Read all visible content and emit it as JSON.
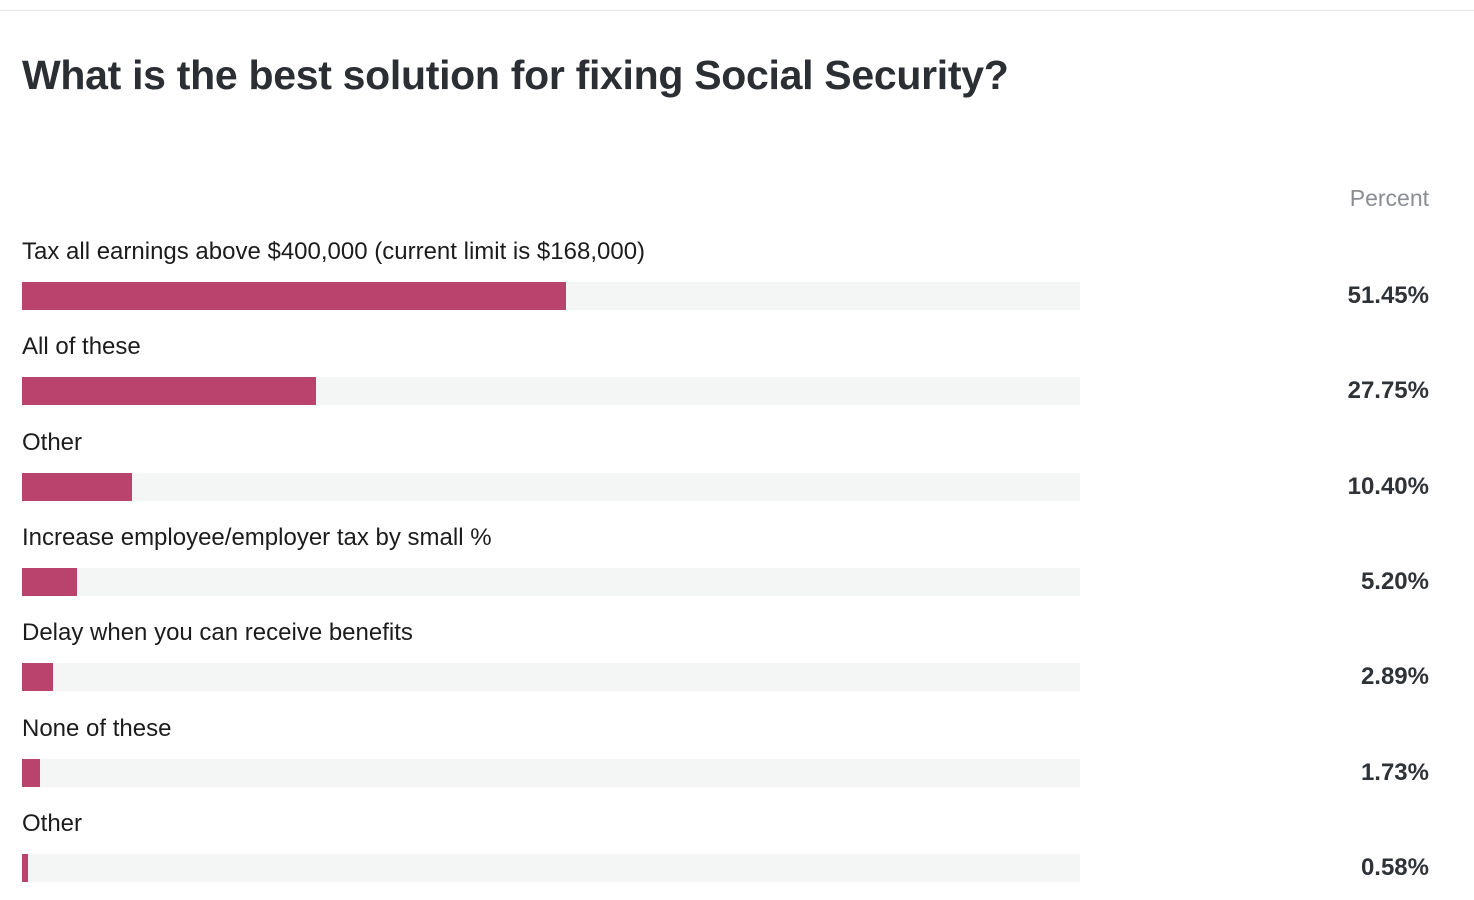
{
  "page": {
    "title": "What is the best solution for fixing Social Security?",
    "column_header": "Percent"
  },
  "colors": {
    "bar": "#b9436c",
    "track": "#f4f5f5",
    "title": "#2b2f33",
    "header": "#8a8d91"
  },
  "chart_data": {
    "type": "bar",
    "orientation": "horizontal",
    "title": "What is the best solution for fixing Social Security?",
    "value_header": "Percent",
    "xlim": [
      0,
      100
    ],
    "grid": false,
    "legend": "none",
    "categories": [
      "Tax all earnings above $400,000 (current limit is $168,000)",
      "All of these",
      "Other",
      "Increase employee/employer tax by small %",
      "Delay when you can receive benefits",
      "None of these",
      "Other"
    ],
    "values": [
      51.45,
      27.75,
      10.4,
      5.2,
      2.89,
      1.73,
      0.58
    ],
    "value_labels": [
      "51.45%",
      "27.75%",
      "10.40%",
      "5.20%",
      "2.89%",
      "1.73%",
      "0.58%"
    ]
  }
}
